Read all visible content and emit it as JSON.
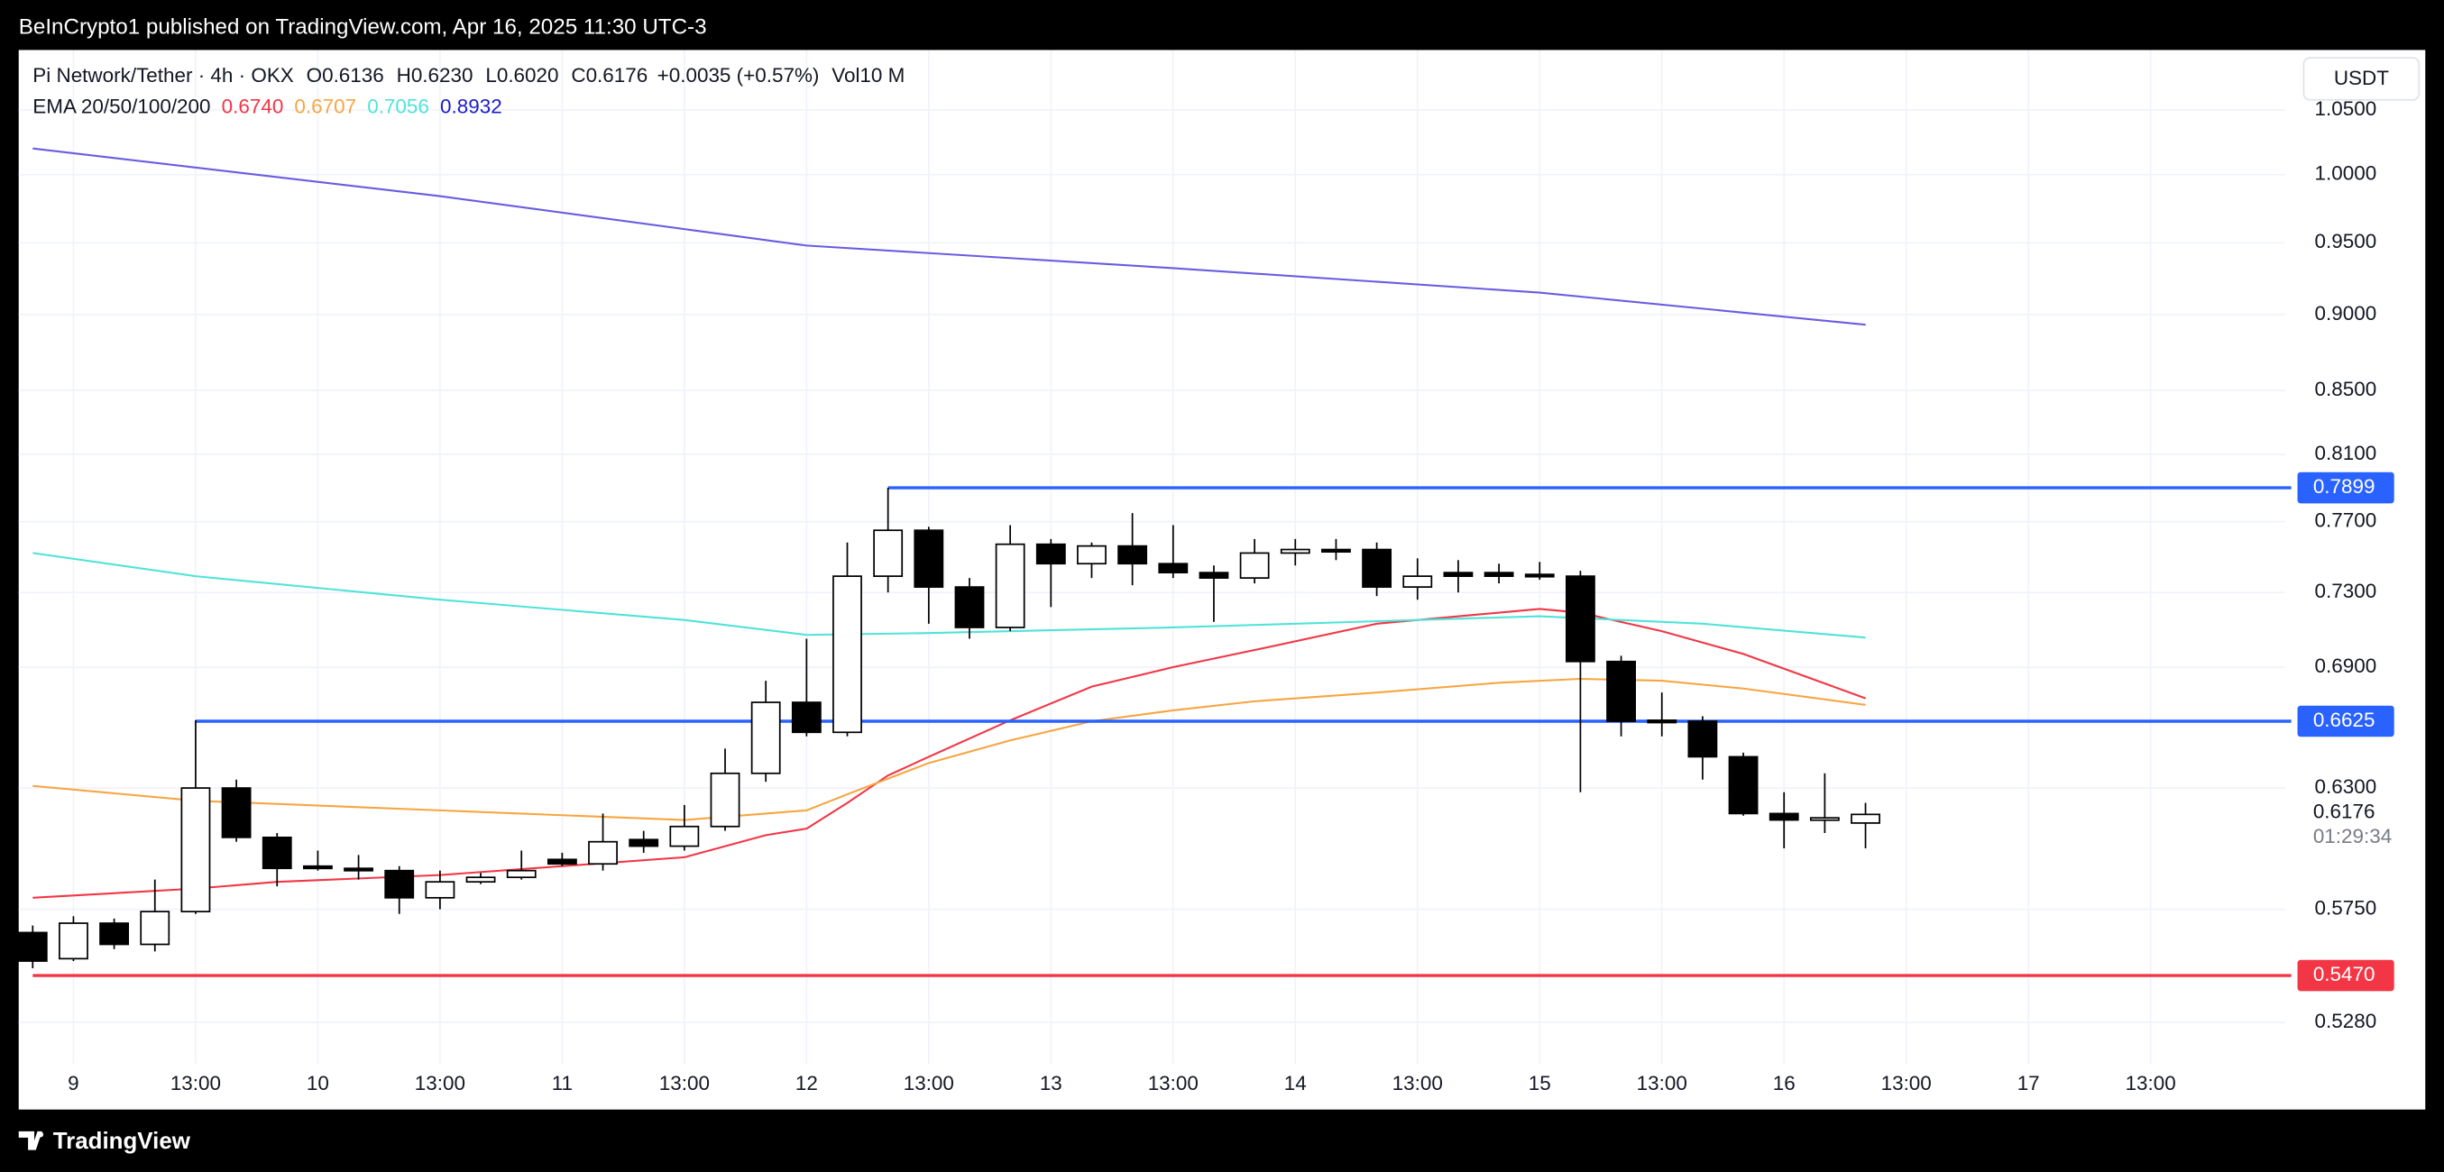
{
  "page": {
    "publisher_line": "BeInCrypto1 published on TradingView.com, Apr 16, 2025 11:30 UTC-3",
    "brand": "TradingView",
    "currency_button": "USDT"
  },
  "chart_data": {
    "type": "candlestick",
    "legend": {
      "symbol": "Pi Network/Tether · 4h · OKX",
      "ohlc": [
        {
          "key": "O",
          "text": "0.6136"
        },
        {
          "key": "H",
          "text": "0.6230"
        },
        {
          "key": "L",
          "text": "0.6020"
        },
        {
          "key": "C",
          "text": "0.6176"
        }
      ],
      "change": "+0.0035 (+0.57%)",
      "volume": "Vol10 M",
      "ema_label": "EMA 20/50/100/200"
    },
    "log_scale": true,
    "grid": true,
    "up_color": "#ffffff",
    "down_color": "#000000",
    "xlim": [
      -0.344,
      55.3
    ],
    "xticks": [
      {
        "value": 1,
        "label": "9"
      },
      {
        "value": 4,
        "label": "13:00"
      },
      {
        "value": 7,
        "label": "10"
      },
      {
        "value": 10,
        "label": "13:00"
      },
      {
        "value": 13,
        "label": "11"
      },
      {
        "value": 16,
        "label": "13:00"
      },
      {
        "value": 19,
        "label": "12"
      },
      {
        "value": 22,
        "label": "13:00"
      },
      {
        "value": 25,
        "label": "13"
      },
      {
        "value": 28,
        "label": "13:00"
      },
      {
        "value": 31,
        "label": "14"
      },
      {
        "value": 34,
        "label": "13:00"
      },
      {
        "value": 37,
        "label": "15"
      },
      {
        "value": 40,
        "label": "13:00"
      },
      {
        "value": 43,
        "label": "16"
      },
      {
        "value": 46,
        "label": "13:00"
      },
      {
        "value": 49,
        "label": "17"
      },
      {
        "value": 52,
        "label": "13:00"
      }
    ],
    "ylim": [
      0.5116,
      1.0985
    ],
    "yticks": [
      {
        "value": 1.05,
        "label": "1.0500"
      },
      {
        "value": 1.0,
        "label": "1.0000"
      },
      {
        "value": 0.95,
        "label": "0.9500"
      },
      {
        "value": 0.9,
        "label": "0.9000"
      },
      {
        "value": 0.85,
        "label": "0.8500"
      },
      {
        "value": 0.81,
        "label": "0.8100"
      },
      {
        "value": 0.77,
        "label": "0.7700"
      },
      {
        "value": 0.73,
        "label": "0.7300"
      },
      {
        "value": 0.69,
        "label": "0.6900"
      },
      {
        "value": 0.63,
        "label": "0.6300"
      },
      {
        "value": 0.575,
        "label": "0.5750"
      },
      {
        "value": 0.528,
        "label": "0.5280"
      }
    ],
    "candles": {
      "open": [
        0.565,
        0.554,
        0.569,
        0.56,
        0.574,
        0.63,
        0.607,
        0.594,
        0.593,
        0.592,
        0.58,
        0.587,
        0.589,
        0.597,
        0.595,
        0.606,
        0.603,
        0.612,
        0.637,
        0.672,
        0.657,
        0.739,
        0.765,
        0.733,
        0.711,
        0.757,
        0.746,
        0.756,
        0.746,
        0.741,
        0.738,
        0.752,
        0.754,
        0.754,
        0.733,
        0.741,
        0.741,
        0.74,
        0.739,
        0.693,
        0.663,
        0.6625,
        0.645,
        0.618,
        0.615,
        0.6136
      ],
      "high": [
        0.568,
        0.572,
        0.571,
        0.588,
        0.663,
        0.634,
        0.609,
        0.601,
        0.599,
        0.594,
        0.592,
        0.591,
        0.601,
        0.6,
        0.618,
        0.61,
        0.622,
        0.649,
        0.683,
        0.705,
        0.758,
        0.7899,
        0.767,
        0.738,
        0.768,
        0.76,
        0.758,
        0.775,
        0.768,
        0.745,
        0.76,
        0.76,
        0.76,
        0.758,
        0.749,
        0.748,
        0.746,
        0.747,
        0.742,
        0.696,
        0.677,
        0.665,
        0.647,
        0.628,
        0.637,
        0.623
      ],
      "low": [
        0.55,
        0.553,
        0.558,
        0.557,
        0.573,
        0.605,
        0.585,
        0.592,
        0.588,
        0.573,
        0.575,
        0.586,
        0.588,
        0.594,
        0.592,
        0.6,
        0.601,
        0.61,
        0.633,
        0.655,
        0.655,
        0.73,
        0.713,
        0.705,
        0.709,
        0.722,
        0.738,
        0.734,
        0.738,
        0.714,
        0.735,
        0.745,
        0.748,
        0.728,
        0.726,
        0.73,
        0.735,
        0.737,
        0.628,
        0.655,
        0.655,
        0.634,
        0.617,
        0.602,
        0.609,
        0.602
      ],
      "close": [
        0.553,
        0.569,
        0.56,
        0.574,
        0.63,
        0.607,
        0.593,
        0.593,
        0.592,
        0.58,
        0.587,
        0.589,
        0.592,
        0.595,
        0.605,
        0.603,
        0.612,
        0.637,
        0.672,
        0.657,
        0.739,
        0.765,
        0.733,
        0.711,
        0.757,
        0.746,
        0.756,
        0.746,
        0.741,
        0.738,
        0.752,
        0.754,
        0.753,
        0.733,
        0.739,
        0.739,
        0.739,
        0.739,
        0.693,
        0.6625,
        0.6625,
        0.645,
        0.618,
        0.615,
        0.616,
        0.6176
      ]
    },
    "series": [
      {
        "color": "#f23645",
        "value_label": "0.6740",
        "x": [
          0,
          4,
          6,
          10,
          16,
          18,
          19,
          20,
          21,
          22,
          24,
          26,
          28,
          30,
          33,
          36,
          37,
          38,
          40,
          42,
          45
        ],
        "values": [
          0.58,
          0.584,
          0.587,
          0.59,
          0.598,
          0.608,
          0.611,
          0.623,
          0.636,
          0.645,
          0.663,
          0.68,
          0.69,
          0.699,
          0.713,
          0.719,
          0.721,
          0.719,
          0.709,
          0.697,
          0.674
        ]
      },
      {
        "color": "#f7a541",
        "value_label": "0.6707",
        "x": [
          0,
          4,
          10,
          16,
          19,
          20,
          22,
          24,
          26,
          28,
          30,
          33,
          36,
          38,
          40,
          42,
          45
        ],
        "values": [
          0.631,
          0.624,
          0.6195,
          0.615,
          0.6195,
          0.627,
          0.642,
          0.653,
          0.6625,
          0.668,
          0.6725,
          0.677,
          0.682,
          0.684,
          0.683,
          0.679,
          0.6707
        ]
      },
      {
        "color": "#4fe3d8",
        "value_label": "0.7056",
        "x": [
          0,
          4,
          10,
          16,
          19,
          22,
          28,
          34,
          37,
          41,
          45
        ],
        "values": [
          0.752,
          0.739,
          0.726,
          0.715,
          0.707,
          0.708,
          0.711,
          0.715,
          0.717,
          0.713,
          0.7056
        ]
      },
      {
        "color": "#1c1cc8",
        "line_color": "#6a5ce0",
        "value_label": "0.8932",
        "x": [
          0,
          10,
          19,
          28,
          37,
          45
        ],
        "values": [
          1.02,
          0.984,
          0.948,
          0.932,
          0.915,
          0.8932
        ]
      }
    ],
    "levels": [
      {
        "value": 0.7899,
        "value_label": "0.7899",
        "color": "#2962ff",
        "x_start": 21
      },
      {
        "value": 0.6625,
        "value_label": "0.6625",
        "color": "#2962ff",
        "x_start": 4
      },
      {
        "value": 0.547,
        "value_label": "0.5470",
        "color": "#f23645",
        "x_start": 0
      }
    ],
    "last_price_label": "0.6176",
    "countdown": "01:29:34"
  }
}
